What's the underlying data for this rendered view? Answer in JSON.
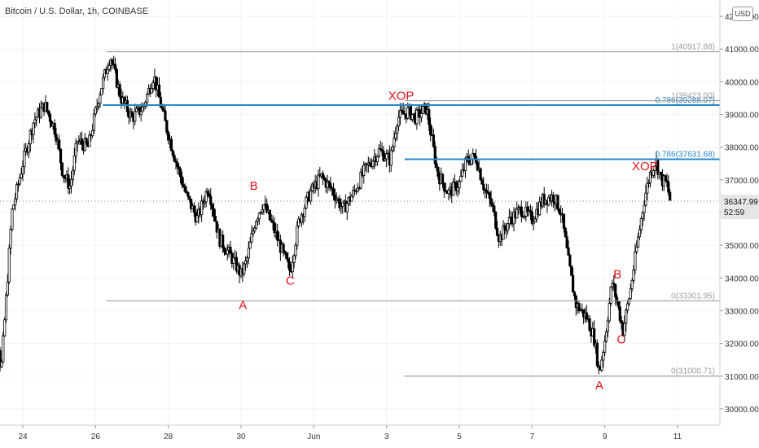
{
  "header": {
    "title": "Bitcoin / U.S. Dollar, 1h, COINBASE",
    "currency_badge": "USD"
  },
  "chart_data": {
    "type": "candlestick",
    "ylim": [
      29500,
      42500
    ],
    "y_ticks": [
      {
        "value": 30000,
        "label": "30000.00"
      },
      {
        "value": 31000,
        "label": "31000.00"
      },
      {
        "value": 32000,
        "label": "32000.00"
      },
      {
        "value": 33000,
        "label": "33000.00"
      },
      {
        "value": 34000,
        "label": "34000.00"
      },
      {
        "value": 35000,
        "label": "35000.00"
      },
      {
        "value": 36000,
        "label": "36000.00"
      },
      {
        "value": 37000,
        "label": "37000.00"
      },
      {
        "value": 38000,
        "label": "38000.00"
      },
      {
        "value": 39000,
        "label": "39000.00"
      },
      {
        "value": 40000,
        "label": "40000.00"
      },
      {
        "value": 41000,
        "label": "41000.00"
      },
      {
        "value": 42000,
        "label": "42000.00"
      }
    ],
    "x_ticks": [
      {
        "day": 24,
        "label": "24"
      },
      {
        "day": 26,
        "label": "26"
      },
      {
        "day": 28,
        "label": "28"
      },
      {
        "day": 30,
        "label": "30"
      },
      {
        "day": 32,
        "label": "Jun"
      },
      {
        "day": 34,
        "label": "3"
      },
      {
        "day": 36,
        "label": "5"
      },
      {
        "day": 38,
        "label": "7"
      },
      {
        "day": 40,
        "label": "9"
      },
      {
        "day": 42,
        "label": "11"
      }
    ],
    "last_price": {
      "value": 36347.99,
      "label": "36347.99",
      "countdown": "52:59"
    },
    "price_path": [
      [
        23.0,
        35500
      ],
      [
        23.25,
        33000
      ],
      [
        23.4,
        31100
      ],
      [
        23.55,
        33500
      ],
      [
        23.7,
        36000
      ],
      [
        24.0,
        37500
      ],
      [
        24.3,
        38800
      ],
      [
        24.6,
        39300
      ],
      [
        24.9,
        38500
      ],
      [
        25.1,
        37200
      ],
      [
        25.3,
        36800
      ],
      [
        25.5,
        38200
      ],
      [
        25.8,
        38000
      ],
      [
        26.1,
        39600
      ],
      [
        26.4,
        40800
      ],
      [
        26.7,
        39500
      ],
      [
        27.0,
        38900
      ],
      [
        27.3,
        39200
      ],
      [
        27.6,
        40200
      ],
      [
        27.9,
        38800
      ],
      [
        28.2,
        37600
      ],
      [
        28.5,
        36500
      ],
      [
        28.8,
        35800
      ],
      [
        29.1,
        36800
      ],
      [
        29.4,
        35200
      ],
      [
        29.7,
        34700
      ],
      [
        30.0,
        34100
      ],
      [
        30.15,
        34500
      ],
      [
        30.4,
        35800
      ],
      [
        30.6,
        36300
      ],
      [
        30.9,
        35500
      ],
      [
        31.2,
        34600
      ],
      [
        31.35,
        34200
      ],
      [
        31.6,
        35800
      ],
      [
        31.9,
        36600
      ],
      [
        32.2,
        37100
      ],
      [
        32.5,
        36700
      ],
      [
        32.8,
        36100
      ],
      [
        33.1,
        36600
      ],
      [
        33.4,
        37300
      ],
      [
        33.8,
        37900
      ],
      [
        34.1,
        37600
      ],
      [
        34.3,
        38900
      ],
      [
        34.6,
        39100
      ],
      [
        34.8,
        38900
      ],
      [
        35.1,
        39200
      ],
      [
        35.4,
        37200
      ],
      [
        35.7,
        36600
      ],
      [
        36.0,
        36900
      ],
      [
        36.2,
        37600
      ],
      [
        36.45,
        37700
      ],
      [
        36.7,
        36700
      ],
      [
        36.9,
        36200
      ],
      [
        37.1,
        35200
      ],
      [
        37.4,
        35800
      ],
      [
        37.7,
        36100
      ],
      [
        38.0,
        35800
      ],
      [
        38.3,
        36400
      ],
      [
        38.6,
        36500
      ],
      [
        38.8,
        36000
      ],
      [
        39.0,
        34500
      ],
      [
        39.2,
        33200
      ],
      [
        39.5,
        32800
      ],
      [
        39.7,
        32200
      ],
      [
        39.85,
        31100
      ],
      [
        40.0,
        32100
      ],
      [
        40.2,
        33900
      ],
      [
        40.35,
        33200
      ],
      [
        40.5,
        32400
      ],
      [
        40.7,
        33600
      ],
      [
        40.9,
        35100
      ],
      [
        41.1,
        36500
      ],
      [
        41.25,
        37200
      ],
      [
        41.4,
        37600
      ],
      [
        41.55,
        37000
      ],
      [
        41.7,
        36900
      ],
      [
        41.8,
        36350
      ]
    ],
    "horizontal_lines": [
      {
        "value": 40917.88,
        "from_day": 26.3,
        "label": "1(40917.88)",
        "color": "#9e9e9e"
      },
      {
        "value": 39288.07,
        "from_day": 26.2,
        "label": "0.786(39288.07)",
        "color": "#2a87c8"
      },
      {
        "value": 39423.0,
        "from_day": 34.5,
        "label": "1(39423.00)",
        "color": "#9e9e9e"
      },
      {
        "value": 37631.68,
        "from_day": 34.5,
        "label": "0.786(37631.68)",
        "color": "#2a87c8"
      },
      {
        "value": 33301.95,
        "from_day": 26.3,
        "label": "0(33301.95)",
        "color": "#9e9e9e"
      },
      {
        "value": 31000.71,
        "from_day": 34.5,
        "label": "0(31000.71)",
        "color": "#9e9e9e"
      }
    ],
    "annotations": [
      {
        "text": "B",
        "day": 30.35,
        "value": 36700
      },
      {
        "text": "A",
        "day": 30.05,
        "value": 33050
      },
      {
        "text": "C",
        "day": 31.35,
        "value": 33800
      },
      {
        "text": "XOP",
        "day": 34.4,
        "value": 39450
      },
      {
        "text": "XOP",
        "day": 41.1,
        "value": 37300
      },
      {
        "text": "B",
        "day": 40.35,
        "value": 34000
      },
      {
        "text": "C",
        "day": 40.45,
        "value": 32000
      },
      {
        "text": "A",
        "day": 39.85,
        "value": 30600
      }
    ]
  },
  "colors": {
    "candle": "#000000",
    "fib_line": "#2a87c8",
    "range_line": "#9e9e9e",
    "annotation": "#e0131a",
    "grid": "#f0f3fa",
    "axis_text": "#333333",
    "last_price_bg": "#e6e6e6",
    "last_price_line": "#555555"
  }
}
